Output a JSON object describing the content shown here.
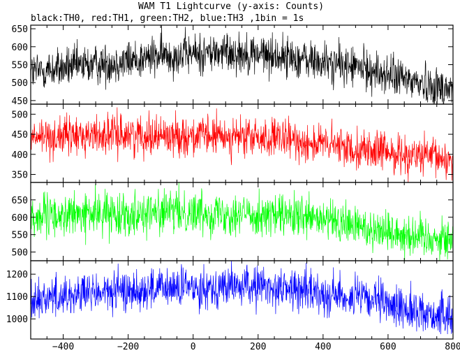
{
  "chart_data": {
    "type": "line",
    "title": "WAM T1 Lightcurve (y-axis: Counts)",
    "subtitle": "black:TH0, red:TH1, green:TH2, blue:TH3 ,1bin = 1s",
    "xlabel": "",
    "ylabel": "",
    "xlim": [
      -500,
      800
    ],
    "x_ticks": [
      "−400",
      "−200",
      "0",
      "200",
      "400",
      "600",
      "800"
    ],
    "x_tick_values": [
      -400,
      -200,
      0,
      200,
      400,
      600,
      800
    ],
    "grid": false,
    "bin_seconds": 1,
    "panels": [
      {
        "name": "TH0",
        "color": "#000000",
        "ylim": [
          440,
          660
        ],
        "y_ticks": [
          450,
          500,
          550,
          600,
          650
        ],
        "profile_x": [
          -500,
          -400,
          -300,
          -200,
          -100,
          0,
          100,
          200,
          300,
          400,
          500,
          600,
          700,
          800
        ],
        "profile_y": [
          530,
          540,
          550,
          560,
          575,
          580,
          585,
          580,
          570,
          555,
          545,
          520,
          500,
          480
        ],
        "noise_sd": 28
      },
      {
        "name": "TH1",
        "color": "#ff0000",
        "ylim": [
          330,
          525
        ],
        "y_ticks": [
          350,
          400,
          450,
          500
        ],
        "profile_x": [
          -500,
          -400,
          -300,
          -200,
          -100,
          0,
          100,
          200,
          300,
          400,
          500,
          600,
          700,
          800
        ],
        "profile_y": [
          440,
          445,
          448,
          450,
          448,
          445,
          445,
          440,
          435,
          425,
          415,
          405,
          395,
          385
        ],
        "noise_sd": 24
      },
      {
        "name": "TH2",
        "color": "#00ff00",
        "ylim": [
          475,
          700
        ],
        "y_ticks": [
          500,
          550,
          600,
          650
        ],
        "profile_x": [
          -500,
          -400,
          -300,
          -200,
          -100,
          0,
          100,
          200,
          300,
          400,
          500,
          600,
          700,
          800
        ],
        "profile_y": [
          600,
          605,
          610,
          612,
          615,
          615,
          612,
          608,
          600,
          590,
          575,
          560,
          545,
          535
        ],
        "noise_sd": 30
      },
      {
        "name": "TH3",
        "color": "#0000ff",
        "ylim": [
          910,
          1260
        ],
        "y_ticks": [
          1000,
          1100,
          1200
        ],
        "profile_x": [
          -500,
          -400,
          -300,
          -200,
          -100,
          0,
          100,
          200,
          300,
          400,
          500,
          600,
          700,
          800
        ],
        "profile_y": [
          1090,
          1105,
          1115,
          1125,
          1135,
          1140,
          1145,
          1145,
          1135,
          1115,
          1095,
          1065,
          1030,
          1000
        ],
        "noise_sd": 45
      }
    ]
  }
}
